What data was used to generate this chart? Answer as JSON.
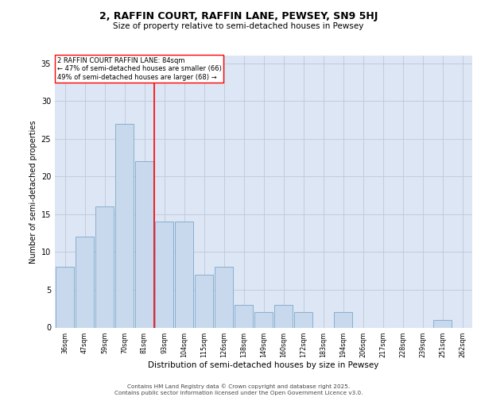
{
  "title1": "2, RAFFIN COURT, RAFFIN LANE, PEWSEY, SN9 5HJ",
  "title2": "Size of property relative to semi-detached houses in Pewsey",
  "xlabel": "Distribution of semi-detached houses by size in Pewsey",
  "ylabel": "Number of semi-detached properties",
  "categories": [
    "36sqm",
    "47sqm",
    "59sqm",
    "70sqm",
    "81sqm",
    "93sqm",
    "104sqm",
    "115sqm",
    "126sqm",
    "138sqm",
    "149sqm",
    "160sqm",
    "172sqm",
    "183sqm",
    "194sqm",
    "206sqm",
    "217sqm",
    "228sqm",
    "239sqm",
    "251sqm",
    "262sqm"
  ],
  "values": [
    8,
    12,
    16,
    27,
    22,
    14,
    14,
    7,
    8,
    3,
    2,
    3,
    2,
    0,
    2,
    0,
    0,
    0,
    0,
    1,
    0
  ],
  "bar_color": "#c9d9ed",
  "bar_edge_color": "#7da7c9",
  "grid_color": "#c0c8d8",
  "background_color": "#dce6f5",
  "vline_x": 4.5,
  "vline_color": "red",
  "annotation_text": "2 RAFFIN COURT RAFFIN LANE: 84sqm\n← 47% of semi-detached houses are smaller (66)\n49% of semi-detached houses are larger (68) →",
  "annotation_box_color": "white",
  "annotation_box_edge": "red",
  "footer_line1": "Contains HM Land Registry data © Crown copyright and database right 2025.",
  "footer_line2": "Contains public sector information licensed under the Open Government Licence v3.0.",
  "ylim": [
    0,
    36
  ],
  "yticks": [
    0,
    5,
    10,
    15,
    20,
    25,
    30,
    35
  ]
}
